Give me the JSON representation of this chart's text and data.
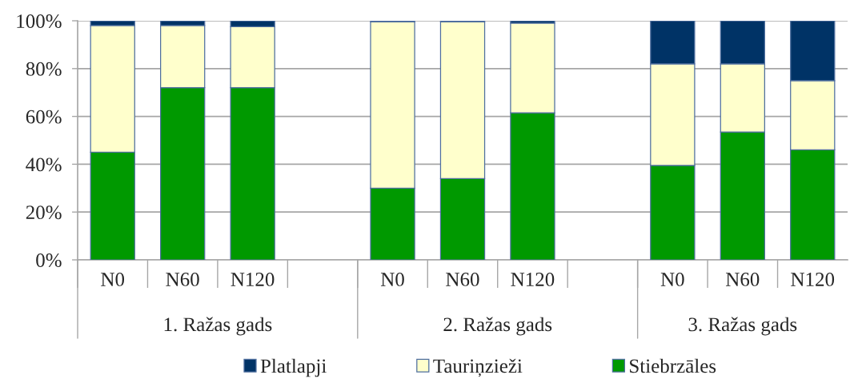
{
  "chart_data": {
    "type": "bar",
    "stacked": true,
    "categories": [
      "N0",
      "N60",
      "N120",
      null,
      "N0",
      "N60",
      "N120",
      null,
      "N0",
      "N60",
      "N120"
    ],
    "series": [
      {
        "name": "Stiebrzāles",
        "color": "#009900",
        "values": [
          45,
          72,
          72,
          null,
          30,
          34,
          61.5,
          null,
          39.5,
          53.5,
          46
        ]
      },
      {
        "name": "Tauriņzieži",
        "color": "#ffffcc",
        "values": [
          53,
          26,
          25.5,
          null,
          69.5,
          65.5,
          37.5,
          null,
          42.5,
          28.5,
          29
        ]
      },
      {
        "name": "Platlapji",
        "color": "#003366",
        "values": [
          2,
          2,
          2.5,
          null,
          0.5,
          0.5,
          1,
          null,
          18,
          18,
          25
        ]
      }
    ],
    "ylim": [
      0,
      100
    ],
    "yticks": [
      {
        "value": 0,
        "label": "0%"
      },
      {
        "value": 20,
        "label": "20%"
      },
      {
        "value": 40,
        "label": "40%"
      },
      {
        "value": 60,
        "label": "60%"
      },
      {
        "value": 80,
        "label": "80%"
      },
      {
        "value": 100,
        "label": "100%"
      }
    ],
    "grid": "y",
    "legend": "bottom",
    "annotations": [
      "1. Ražas gads",
      "2. Ražas gads",
      "3. Ražas gads"
    ]
  }
}
